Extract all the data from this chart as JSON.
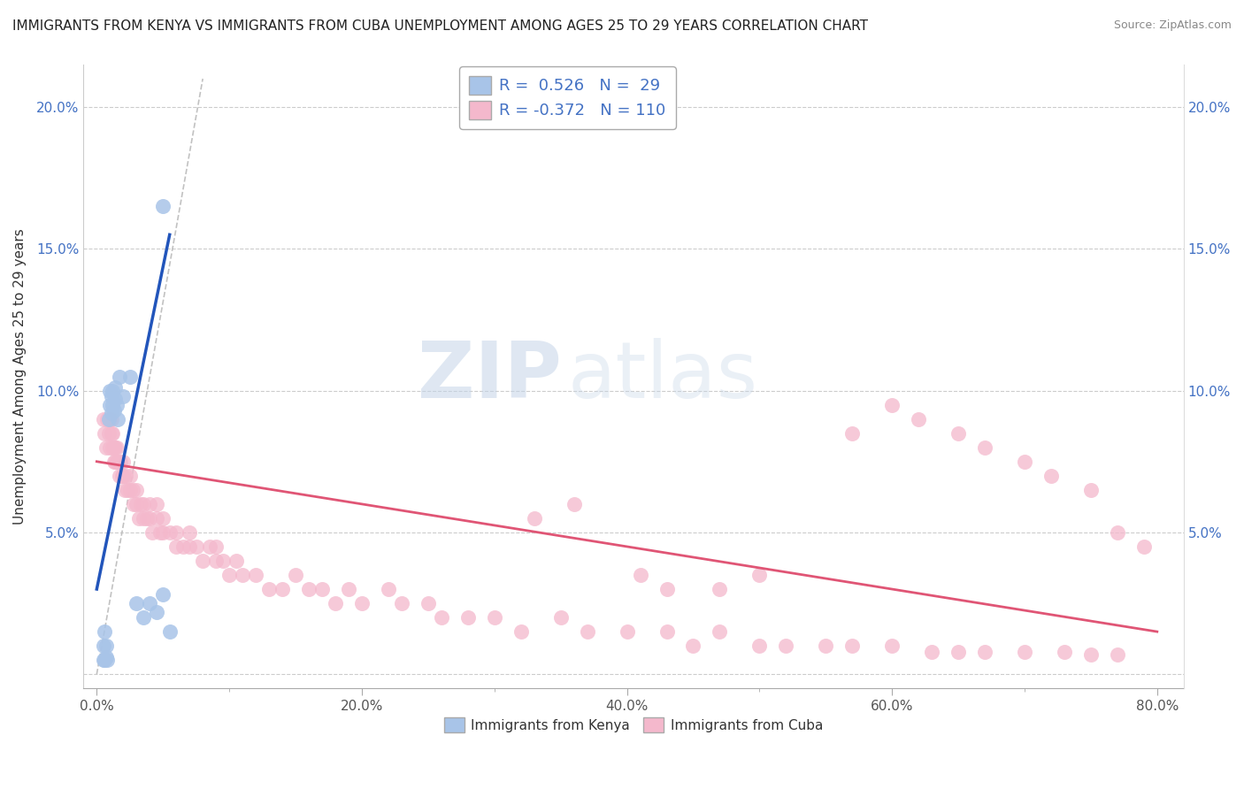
{
  "title": "IMMIGRANTS FROM KENYA VS IMMIGRANTS FROM CUBA UNEMPLOYMENT AMONG AGES 25 TO 29 YEARS CORRELATION CHART",
  "source": "Source: ZipAtlas.com",
  "ylabel_label": "Unemployment Among Ages 25 to 29 years",
  "legend_label1": "Immigrants from Kenya",
  "legend_label2": "Immigrants from Cuba",
  "R_kenya": 0.526,
  "N_kenya": 29,
  "R_cuba": -0.372,
  "N_cuba": 110,
  "color_kenya": "#a8c4e8",
  "color_cuba": "#f4b8cc",
  "line_color_kenya": "#2255bb",
  "line_color_cuba": "#e05575",
  "ref_line_color": "#bbbbbb",
  "kenya_x": [
    0.5,
    0.6,
    0.7,
    0.8,
    0.9,
    1.0,
    1.0,
    1.1,
    1.1,
    1.2,
    1.2,
    1.3,
    1.4,
    1.4,
    1.5,
    1.6,
    1.7,
    2.0,
    2.5,
    3.0,
    3.5,
    4.0,
    4.5,
    5.0,
    5.0,
    5.5,
    0.5,
    0.6,
    0.7
  ],
  "kenya_y": [
    1.0,
    0.5,
    0.6,
    0.5,
    9.0,
    9.5,
    10.0,
    9.2,
    9.8,
    9.5,
    10.0,
    9.3,
    9.7,
    10.1,
    9.5,
    9.0,
    10.5,
    9.8,
    10.5,
    2.5,
    2.0,
    2.5,
    2.2,
    2.8,
    16.5,
    1.5,
    0.5,
    1.5,
    1.0
  ],
  "kenya_line_x": [
    0.0,
    5.5
  ],
  "kenya_line_y": [
    3.0,
    15.5
  ],
  "cuba_line_x": [
    0.0,
    80.0
  ],
  "cuba_line_y": [
    7.5,
    1.5
  ],
  "ref_line_x": [
    0.0,
    8.0
  ],
  "ref_line_y": [
    0.0,
    21.0
  ],
  "x_ticks": [
    0,
    20,
    40,
    60,
    80
  ],
  "x_tick_labels": [
    "0.0%",
    "20.0%",
    "40.0%",
    "60.0%",
    "80.0%"
  ],
  "y_ticks": [
    0,
    5,
    10,
    15,
    20
  ],
  "y_tick_labels_left": [
    "",
    "5.0%",
    "10.0%",
    "15.0%",
    "20.0%"
  ],
  "y_tick_labels_right": [
    "",
    "5.0%",
    "10.0%",
    "15.0%",
    "20.0%"
  ],
  "xlim": [
    -1,
    82
  ],
  "ylim": [
    -0.5,
    21.5
  ],
  "watermark_zip": "ZIP",
  "watermark_atlas": "atlas",
  "cuba_scatter_x": [
    0.5,
    0.6,
    0.7,
    0.8,
    0.9,
    1.0,
    1.0,
    1.1,
    1.1,
    1.2,
    1.2,
    1.3,
    1.3,
    1.4,
    1.4,
    1.5,
    1.5,
    1.6,
    1.7,
    1.8,
    1.9,
    2.0,
    2.0,
    2.1,
    2.2,
    2.3,
    2.5,
    2.5,
    2.7,
    2.8,
    3.0,
    3.0,
    3.2,
    3.3,
    3.5,
    3.5,
    3.8,
    4.0,
    4.0,
    4.2,
    4.5,
    4.5,
    4.8,
    5.0,
    5.0,
    5.5,
    6.0,
    6.0,
    6.5,
    7.0,
    7.0,
    7.5,
    8.0,
    8.5,
    9.0,
    9.0,
    9.5,
    10.0,
    10.5,
    11.0,
    12.0,
    13.0,
    14.0,
    15.0,
    16.0,
    17.0,
    18.0,
    19.0,
    20.0,
    22.0,
    23.0,
    25.0,
    26.0,
    28.0,
    30.0,
    32.0,
    35.0,
    37.0,
    40.0,
    43.0,
    45.0,
    47.0,
    50.0,
    52.0,
    55.0,
    57.0,
    60.0,
    63.0,
    65.0,
    67.0,
    70.0,
    73.0,
    75.0,
    77.0,
    57.0,
    60.0,
    62.0,
    65.0,
    67.0,
    70.0,
    72.0,
    75.0,
    77.0,
    79.0,
    33.0,
    36.0,
    41.0,
    43.0,
    47.0,
    50.0
  ],
  "cuba_scatter_y": [
    9.0,
    8.5,
    8.0,
    9.0,
    8.5,
    8.0,
    9.0,
    8.5,
    9.0,
    8.0,
    8.5,
    7.5,
    8.0,
    7.5,
    8.0,
    7.5,
    8.0,
    7.5,
    7.0,
    7.5,
    7.0,
    7.0,
    7.5,
    6.5,
    7.0,
    6.5,
    6.5,
    7.0,
    6.5,
    6.0,
    6.5,
    6.0,
    5.5,
    6.0,
    5.5,
    6.0,
    5.5,
    5.5,
    6.0,
    5.0,
    5.5,
    6.0,
    5.0,
    5.0,
    5.5,
    5.0,
    4.5,
    5.0,
    4.5,
    4.5,
    5.0,
    4.5,
    4.0,
    4.5,
    4.0,
    4.5,
    4.0,
    3.5,
    4.0,
    3.5,
    3.5,
    3.0,
    3.0,
    3.5,
    3.0,
    3.0,
    2.5,
    3.0,
    2.5,
    3.0,
    2.5,
    2.5,
    2.0,
    2.0,
    2.0,
    1.5,
    2.0,
    1.5,
    1.5,
    1.5,
    1.0,
    1.5,
    1.0,
    1.0,
    1.0,
    1.0,
    1.0,
    0.8,
    0.8,
    0.8,
    0.8,
    0.8,
    0.7,
    0.7,
    8.5,
    9.5,
    9.0,
    8.5,
    8.0,
    7.5,
    7.0,
    6.5,
    5.0,
    4.5,
    5.5,
    6.0,
    3.5,
    3.0,
    3.0,
    3.5
  ]
}
